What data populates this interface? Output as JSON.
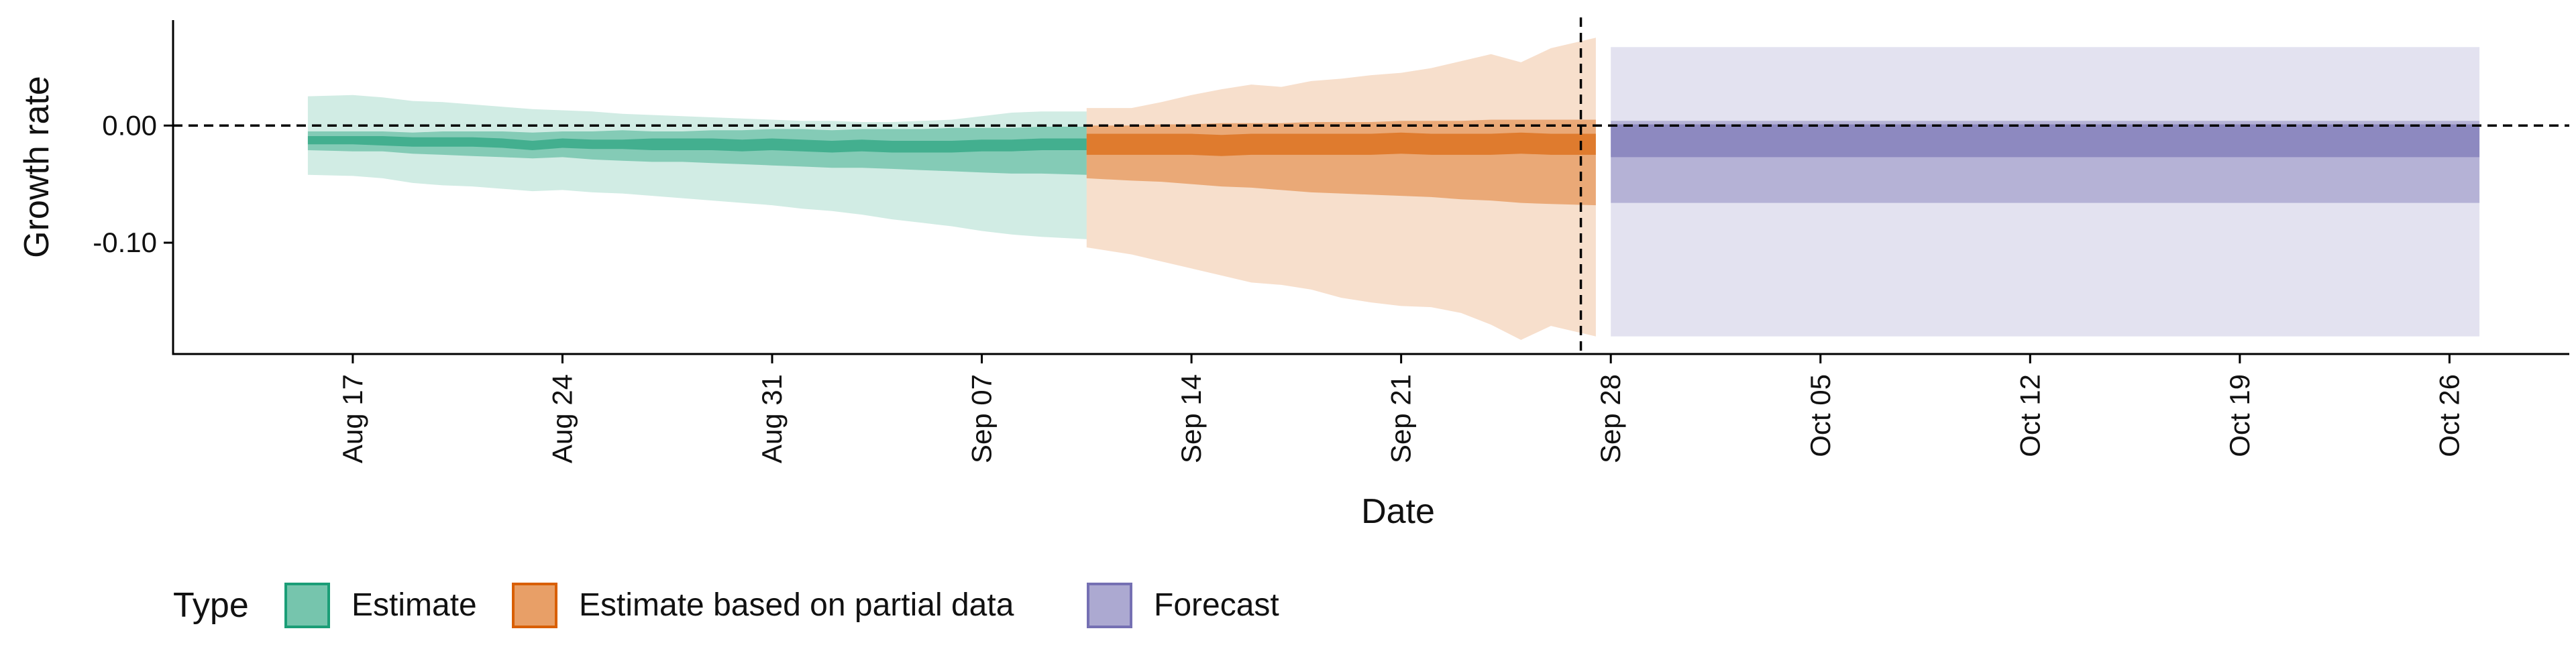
{
  "chart_data": {
    "type": "area",
    "xlabel": "Date",
    "ylabel": "Growth rate",
    "x_ticks": [
      "2020-08-17",
      "2020-08-24",
      "2020-08-31",
      "2020-09-07",
      "2020-09-14",
      "2020-09-21",
      "2020-09-28",
      "2020-10-05",
      "2020-10-12",
      "2020-10-19",
      "2020-10-26"
    ],
    "x_tick_labels": [
      "Aug 17",
      "Aug 24",
      "Aug 31",
      "Sep 07",
      "Sep 14",
      "Sep 21",
      "Sep 28",
      "Oct 05",
      "Oct 12",
      "Oct 19",
      "Oct 26"
    ],
    "xlim": [
      "2020-08-11",
      "2020-10-30"
    ],
    "y_ticks": [
      0.0,
      -0.1
    ],
    "y_tick_labels": [
      "0.00",
      "-0.10"
    ],
    "ylim": [
      -0.195,
      0.09
    ],
    "reference_hline": 0.0,
    "reference_vline": "2020-09-27",
    "legend": {
      "title": "Type",
      "position": "bottom-left",
      "entries": [
        {
          "label": "Estimate",
          "color": "#1b9e77"
        },
        {
          "label": "Estimate based on partial data",
          "color": "#d95f02"
        },
        {
          "label": "Forecast",
          "color": "#7570b3"
        }
      ]
    },
    "series": [
      {
        "name": "Estimate",
        "color": "#1b9e77",
        "x": [
          "2020-08-16",
          "2020-08-17",
          "2020-08-18",
          "2020-08-19",
          "2020-08-20",
          "2020-08-21",
          "2020-08-22",
          "2020-08-23",
          "2020-08-24",
          "2020-08-25",
          "2020-08-26",
          "2020-08-27",
          "2020-08-28",
          "2020-08-29",
          "2020-08-30",
          "2020-08-31",
          "2020-09-01",
          "2020-09-02",
          "2020-09-03",
          "2020-09-04",
          "2020-09-05",
          "2020-09-06",
          "2020-09-07",
          "2020-09-08",
          "2020-09-09",
          "2020-09-10"
        ],
        "median": [
          -0.013,
          -0.013,
          -0.013,
          -0.014,
          -0.014,
          -0.014,
          -0.015,
          -0.017,
          -0.015,
          -0.016,
          -0.016,
          -0.016,
          -0.016,
          -0.016,
          -0.017,
          -0.016,
          -0.017,
          -0.018,
          -0.017,
          -0.018,
          -0.018,
          -0.018,
          -0.017,
          -0.017,
          -0.016,
          -0.016
        ],
        "lower_90": [
          -0.042,
          -0.043,
          -0.045,
          -0.049,
          -0.051,
          -0.052,
          -0.054,
          -0.056,
          -0.055,
          -0.057,
          -0.058,
          -0.06,
          -0.062,
          -0.064,
          -0.066,
          -0.068,
          -0.071,
          -0.073,
          -0.076,
          -0.08,
          -0.083,
          -0.086,
          -0.09,
          -0.093,
          -0.095,
          -0.097
        ],
        "upper_90": [
          0.025,
          0.026,
          0.024,
          0.021,
          0.02,
          0.018,
          0.016,
          0.014,
          0.013,
          0.012,
          0.01,
          0.009,
          0.008,
          0.007,
          0.006,
          0.005,
          0.004,
          0.004,
          0.003,
          0.003,
          0.004,
          0.005,
          0.008,
          0.011,
          0.012,
          0.012
        ],
        "lower_50": [
          -0.021,
          -0.022,
          -0.022,
          -0.024,
          -0.025,
          -0.026,
          -0.027,
          -0.028,
          -0.027,
          -0.029,
          -0.03,
          -0.031,
          -0.031,
          -0.032,
          -0.033,
          -0.034,
          -0.035,
          -0.036,
          -0.036,
          -0.037,
          -0.038,
          -0.039,
          -0.04,
          -0.041,
          -0.041,
          -0.042
        ],
        "upper_50": [
          -0.005,
          -0.005,
          -0.005,
          -0.006,
          -0.005,
          -0.005,
          -0.005,
          -0.006,
          -0.005,
          -0.005,
          -0.004,
          -0.005,
          -0.005,
          -0.004,
          -0.004,
          -0.003,
          -0.003,
          -0.004,
          -0.003,
          -0.003,
          -0.003,
          -0.002,
          -0.002,
          -0.002,
          -0.001,
          -0.001
        ],
        "lower_20": [
          -0.016,
          -0.016,
          -0.017,
          -0.018,
          -0.018,
          -0.018,
          -0.019,
          -0.021,
          -0.019,
          -0.02,
          -0.02,
          -0.021,
          -0.021,
          -0.021,
          -0.022,
          -0.021,
          -0.022,
          -0.023,
          -0.022,
          -0.023,
          -0.023,
          -0.023,
          -0.022,
          -0.022,
          -0.021,
          -0.021
        ],
        "upper_20": [
          -0.009,
          -0.009,
          -0.009,
          -0.01,
          -0.01,
          -0.01,
          -0.011,
          -0.013,
          -0.011,
          -0.012,
          -0.012,
          -0.011,
          -0.011,
          -0.011,
          -0.012,
          -0.011,
          -0.012,
          -0.013,
          -0.012,
          -0.013,
          -0.013,
          -0.013,
          -0.012,
          -0.012,
          -0.011,
          -0.011
        ]
      },
      {
        "name": "Estimate based on partial data",
        "color": "#d95f02",
        "x": [
          "2020-09-11",
          "2020-09-12",
          "2020-09-13",
          "2020-09-14",
          "2020-09-15",
          "2020-09-16",
          "2020-09-17",
          "2020-09-18",
          "2020-09-19",
          "2020-09-20",
          "2020-09-21",
          "2020-09-22",
          "2020-09-23",
          "2020-09-24",
          "2020-09-25",
          "2020-09-26",
          "2020-09-27"
        ],
        "median": [
          -0.016,
          -0.016,
          -0.016,
          -0.016,
          -0.017,
          -0.016,
          -0.016,
          -0.016,
          -0.016,
          -0.016,
          -0.015,
          -0.016,
          -0.016,
          -0.016,
          -0.015,
          -0.016,
          -0.016
        ],
        "lower_90": [
          -0.104,
          -0.11,
          -0.116,
          -0.122,
          -0.128,
          -0.134,
          -0.136,
          -0.14,
          -0.147,
          -0.151,
          -0.154,
          -0.155,
          -0.16,
          -0.17,
          -0.183,
          -0.171,
          -0.18
        ],
        "upper_90": [
          0.015,
          0.015,
          0.02,
          0.026,
          0.031,
          0.035,
          0.033,
          0.038,
          0.04,
          0.043,
          0.045,
          0.049,
          0.055,
          0.061,
          0.054,
          0.066,
          0.075
        ],
        "lower_50": [
          -0.045,
          -0.047,
          -0.048,
          -0.05,
          -0.052,
          -0.053,
          -0.055,
          -0.057,
          -0.058,
          -0.059,
          -0.06,
          -0.061,
          -0.063,
          -0.064,
          -0.066,
          -0.067,
          -0.068
        ],
        "upper_50": [
          0.0,
          0.0,
          0.001,
          0.001,
          0.002,
          0.002,
          0.002,
          0.003,
          0.003,
          0.003,
          0.004,
          0.004,
          0.004,
          0.005,
          0.005,
          0.005,
          0.005
        ],
        "lower_20": [
          -0.025,
          -0.025,
          -0.025,
          -0.025,
          -0.026,
          -0.025,
          -0.025,
          -0.025,
          -0.025,
          -0.025,
          -0.024,
          -0.025,
          -0.025,
          -0.025,
          -0.024,
          -0.025,
          -0.025
        ],
        "upper_20": [
          -0.007,
          -0.007,
          -0.007,
          -0.007,
          -0.008,
          -0.007,
          -0.007,
          -0.007,
          -0.007,
          -0.007,
          -0.006,
          -0.007,
          -0.007,
          -0.007,
          -0.006,
          -0.007,
          -0.007
        ]
      },
      {
        "name": "Forecast",
        "color": "#7570b3",
        "x": [
          "2020-09-28",
          "2020-10-27"
        ],
        "median": [
          -0.015,
          -0.015
        ],
        "lower_90": [
          -0.18,
          -0.18
        ],
        "upper_90": [
          0.067,
          0.067
        ],
        "lower_50": [
          -0.066,
          -0.066
        ],
        "upper_50": [
          0.004,
          0.004
        ],
        "lower_20": [
          -0.027,
          -0.027
        ],
        "upper_20": [
          0.001,
          0.001
        ]
      }
    ]
  }
}
